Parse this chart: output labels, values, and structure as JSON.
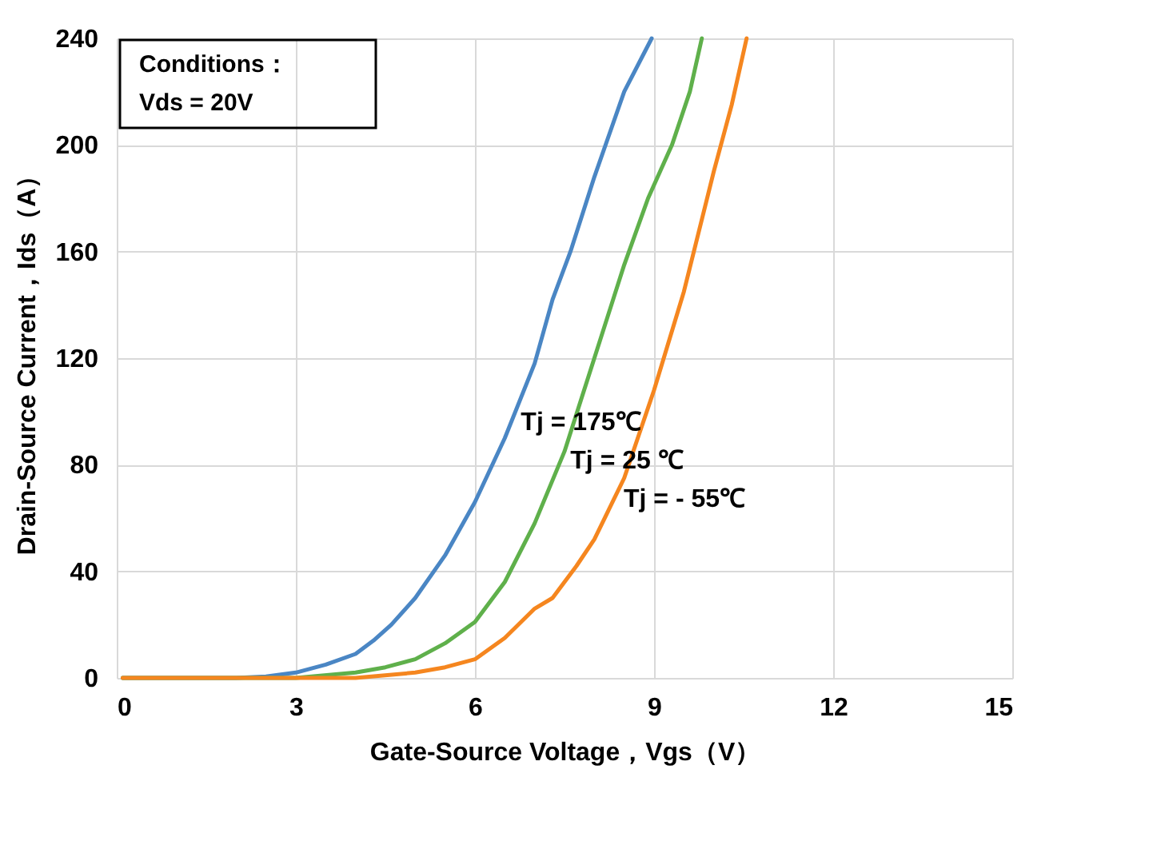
{
  "chart_data": {
    "type": "line",
    "xlabel": "Gate-Source Voltage，Vgs（V）",
    "ylabel": "Drain-Source Current，Ids（A）",
    "xlim": [
      0,
      15
    ],
    "xticks": [
      0,
      3,
      6,
      9,
      12,
      15
    ],
    "ylim": [
      0,
      240
    ],
    "yticks": [
      0,
      40,
      80,
      120,
      160,
      200,
      240
    ],
    "grid": true,
    "legend": false,
    "marker": "none",
    "line_style": "solid",
    "series": [
      {
        "name": "Tj = 175℃",
        "color": "#4a86c4",
        "x": [
          0.1,
          2,
          2.5,
          3,
          3.5,
          4,
          4.3,
          4.6,
          5,
          5.5,
          6,
          6.5,
          7,
          7.3,
          7.6,
          8,
          8.5,
          8.96
        ],
        "values": [
          0,
          0,
          0.5,
          2,
          5,
          9,
          14,
          20,
          30,
          46,
          66,
          90,
          118,
          142,
          160,
          188,
          220,
          240
        ]
      },
      {
        "name": "Tj = 25 ℃",
        "color": "#5fb04b",
        "x": [
          0.1,
          3,
          4,
          4.5,
          5,
          5.5,
          6,
          6.5,
          7,
          7.5,
          8,
          8.5,
          8.9,
          9.3,
          9.6,
          9.8
        ],
        "values": [
          0,
          0,
          2,
          4,
          7,
          13,
          21,
          36,
          58,
          85,
          120,
          155,
          180,
          200,
          220,
          240
        ]
      },
      {
        "name": "Tj = - 55℃",
        "color": "#f5861f",
        "x": [
          0.1,
          4,
          5,
          5.5,
          6,
          6.5,
          7,
          7.3,
          7.7,
          8,
          8.5,
          9,
          9.5,
          10,
          10.3,
          10.55
        ],
        "values": [
          0,
          0,
          2,
          4,
          7,
          15,
          26,
          30,
          42,
          52,
          75,
          108,
          145,
          190,
          215,
          240
        ]
      }
    ],
    "annotations": [
      "Conditions：",
      "Vds = 20V"
    ]
  }
}
